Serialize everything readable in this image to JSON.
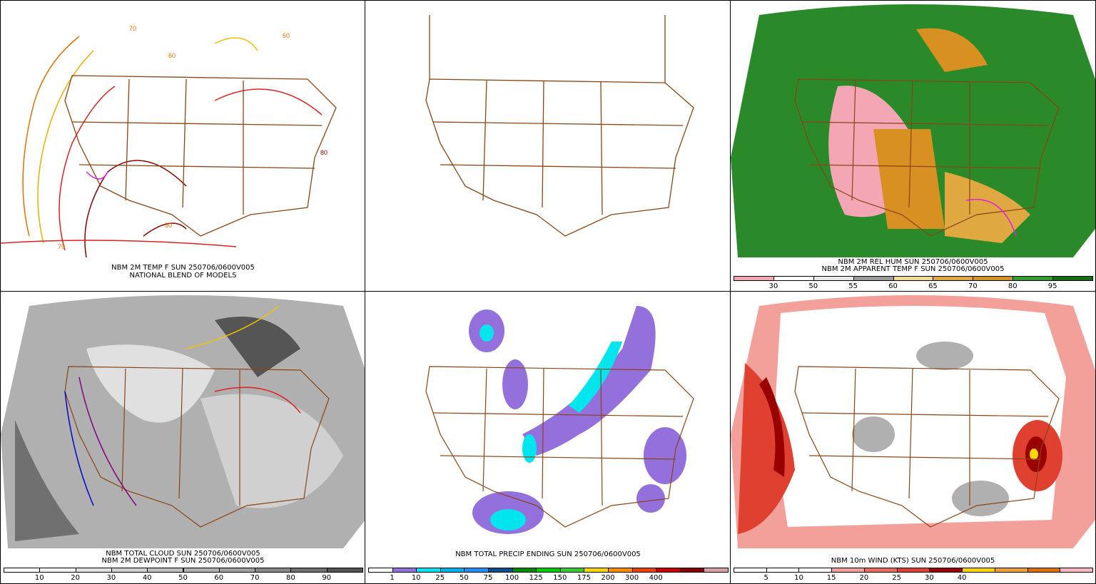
{
  "panels": [
    {
      "id": "temp",
      "captions": [
        "NBM 2M TEMP F SUN 250706/0600V005",
        "NATIONAL BLEND OF MODELS"
      ],
      "colorbar": null
    },
    {
      "id": "blank",
      "captions": [],
      "colorbar": null
    },
    {
      "id": "rh",
      "captions": [
        "NBM 2M REL HUM SUN 250706/0600V005",
        "NBM 2M APPARENT TEMP F SUN 250706/0600V005"
      ],
      "colorbar": {
        "colors": [
          "#f4a6b4",
          "#ffffff",
          "#e8e8e8",
          "#9a9a9a",
          "#f0dc8c",
          "#e0a840",
          "#d89020",
          "#30a030",
          "#107010"
        ],
        "labels": [
          "30",
          "50",
          "55",
          "60",
          "65",
          "70",
          "80",
          "95"
        ]
      }
    },
    {
      "id": "cloud",
      "captions": [
        "NBM TOTAL CLOUD SUN 250706/0600V005",
        "NBM 2M DEWPOINT F SUN 250706/0600V005"
      ],
      "colorbar": {
        "colors": [
          "#ffffff",
          "#f0f0f0",
          "#e0e0e0",
          "#d0d0d0",
          "#c0c0c0",
          "#b0b0b0",
          "#a0a0a0",
          "#888888",
          "#707070",
          "#555555"
        ],
        "labels": [
          "10",
          "20",
          "30",
          "40",
          "50",
          "60",
          "70",
          "80",
          "90"
        ]
      }
    },
    {
      "id": "precip",
      "captions": [
        "NBM TOTAL PRECIP ENDING SUN 250706/0600V005"
      ],
      "colorbar": {
        "colors": [
          "#ffffff",
          "#9370db",
          "#00e5ee",
          "#00b2ee",
          "#1e90ff",
          "#104e8b",
          "#008b00",
          "#00cd00",
          "#32cd32",
          "#ffd700",
          "#ff8c00",
          "#ee4000",
          "#cd0000",
          "#8b0000",
          "#d8a0a8"
        ],
        "labels": [
          "1",
          "10",
          "25",
          "50",
          "75",
          "100",
          "125",
          "150",
          "175",
          "200",
          "300",
          "400"
        ]
      }
    },
    {
      "id": "wind",
      "captions": [
        "NBM 10m WIND (KTS) SUN 250706/0600V005"
      ],
      "colorbar": {
        "colors": [
          "#ffffff",
          "#ffffff",
          "#ffffff",
          "#f4a09a",
          "#ec6a5a",
          "#e04030",
          "#9b0000",
          "#ffd700",
          "#f0a030",
          "#e07000",
          "#ffb6c1"
        ],
        "labels": [
          "5",
          "10",
          "15",
          "20",
          "25",
          "30",
          "40"
        ]
      }
    }
  ]
}
